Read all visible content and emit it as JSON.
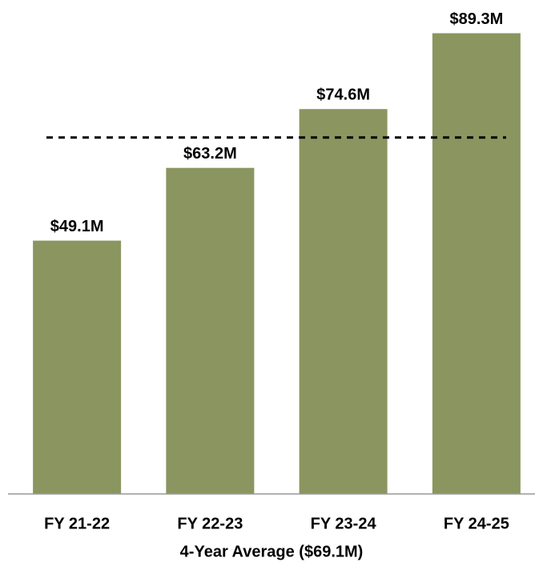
{
  "chart_data": {
    "type": "bar",
    "categories": [
      "FY 21-22",
      "FY 22-23",
      "FY 23-24",
      "FY 24-25"
    ],
    "values": [
      49.1,
      63.2,
      74.6,
      89.3
    ],
    "value_labels": [
      "$49.1M",
      "$63.2M",
      "$74.6M",
      "$89.3M"
    ],
    "color": "#8b9560",
    "ylim": [
      0,
      90
    ],
    "reference_line": {
      "value": 69.1,
      "label": "4-Year Average ($69.1M)"
    }
  }
}
